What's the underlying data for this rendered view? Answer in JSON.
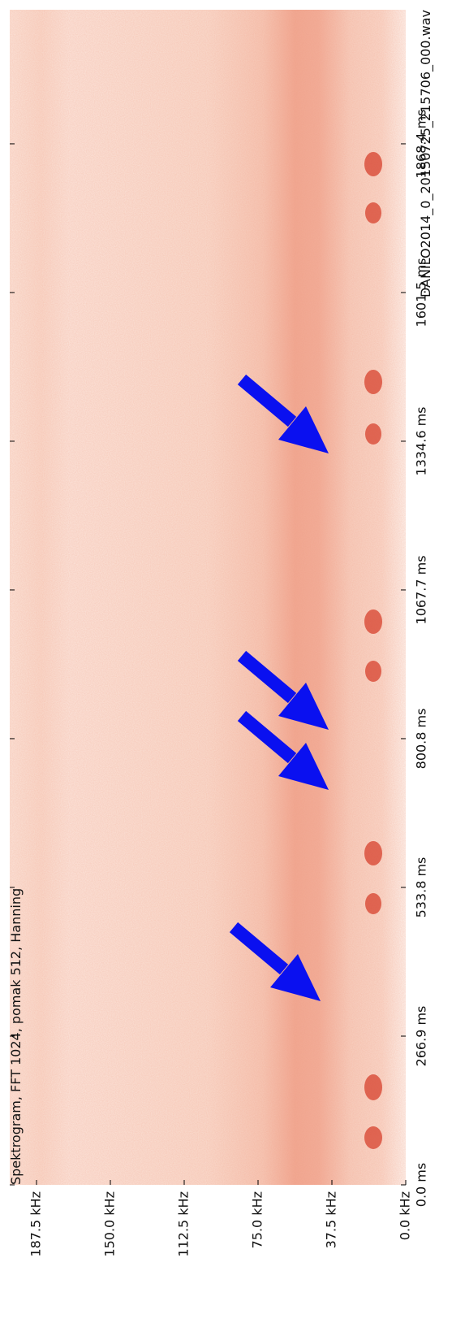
{
  "chart_data": {
    "type": "spectrogram",
    "title": "Spektrogram, FFT 1024, pomak 512, Hanning",
    "subtitle": "DANILO2014_0_20150725_215706_000.wav",
    "xlim": [
      0,
      2109
    ],
    "xticks": [
      {
        "value": 0,
        "label": "0.0 ms"
      },
      {
        "value": 266.9,
        "label": "266.9 ms"
      },
      {
        "value": 533.8,
        "label": "533.8 ms"
      },
      {
        "value": 800.8,
        "label": "800.8 ms"
      },
      {
        "value": 1067.7,
        "label": "1067.7 ms"
      },
      {
        "value": 1334.6,
        "label": "1334.6 ms"
      },
      {
        "value": 1601.5,
        "label": "1601.5 ms"
      },
      {
        "value": 1868.4,
        "label": "1868.4 ms"
      }
    ],
    "ylim": [
      0,
      187.5
    ],
    "yticks": [
      {
        "value": 0,
        "label": "0.0 kHz"
      },
      {
        "value": 37.5,
        "label": "37.5 kHz"
      },
      {
        "value": 75,
        "label": "75.0 kHz"
      },
      {
        "value": 112.5,
        "label": "112.5 kHz"
      },
      {
        "value": 150,
        "label": "150.0 kHz"
      },
      {
        "value": 187.5,
        "label": "187.5 kHz"
      }
    ]
  }
}
